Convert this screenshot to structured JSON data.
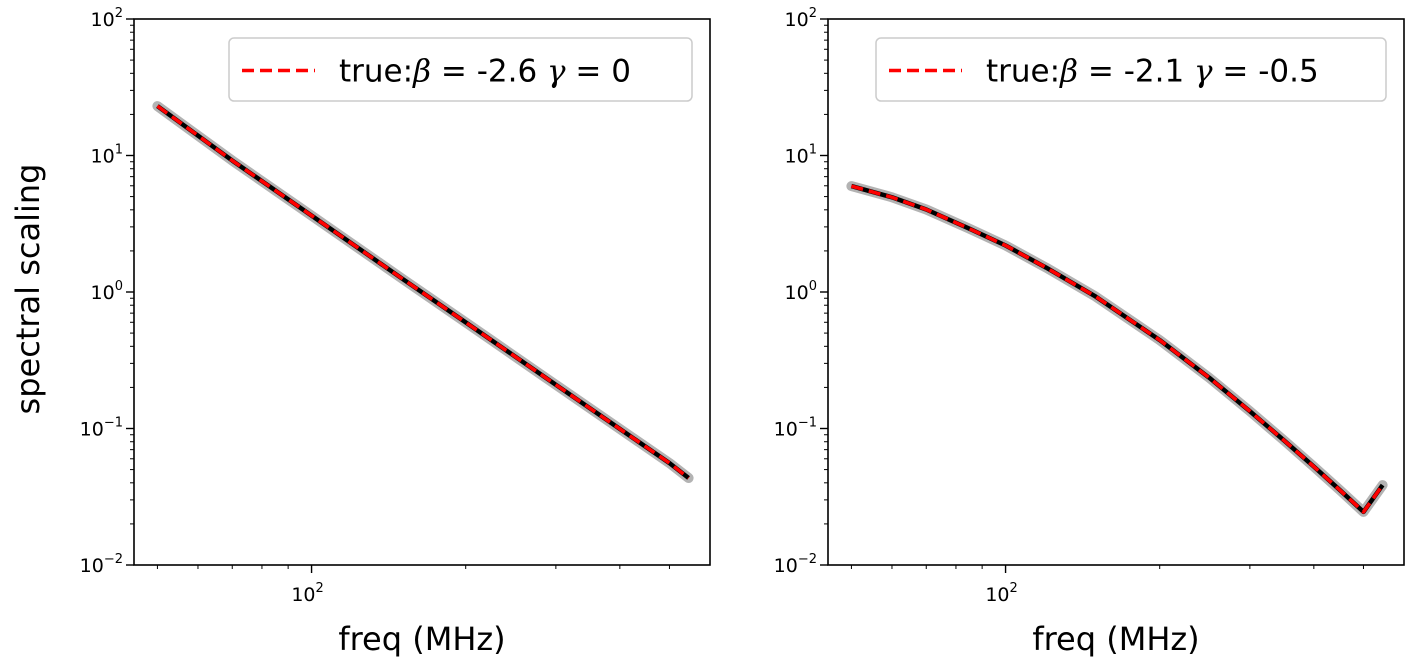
{
  "chart_data": [
    {
      "type": "line",
      "xscale": "log",
      "yscale": "log",
      "xlabel": "freq (MHz)",
      "ylabel": "spectral scaling",
      "xlim": [
        45,
        600
      ],
      "ylim": [
        0.01,
        100
      ],
      "x_major_ticks": [
        {
          "value": 100,
          "base": "10",
          "exp": "2"
        }
      ],
      "y_major_ticks": [
        {
          "value": 0.01,
          "base": "10",
          "exp": "−2"
        },
        {
          "value": 0.1,
          "base": "10",
          "exp": "−1"
        },
        {
          "value": 1,
          "base": "10",
          "exp": "0"
        },
        {
          "value": 10,
          "base": "10",
          "exp": "1"
        },
        {
          "value": 100,
          "base": "10",
          "exp": "2"
        }
      ],
      "grid": false,
      "legend_position": "upper-right",
      "legend": {
        "label": "true:",
        "beta_symbol": "β",
        "beta": "-2.6",
        "gamma_symbol": "γ",
        "gamma": "0",
        "equals": "="
      },
      "series": [
        {
          "style": "solid",
          "color": "#000000",
          "band_color": "#9a9a9a",
          "x": [
            50,
            70,
            100,
            150,
            200,
            300,
            400,
            500,
            545
          ],
          "y": [
            23,
            9.18,
            3.63,
            1.26,
            0.599,
            0.209,
            0.0993,
            0.0558,
            0.0434
          ]
        },
        {
          "style": "dashed",
          "color": "#ff0000",
          "x": [
            50,
            70,
            100,
            150,
            200,
            300,
            400,
            500,
            545
          ],
          "y": [
            23,
            9.18,
            3.63,
            1.26,
            0.599,
            0.209,
            0.0993,
            0.0558,
            0.0434
          ]
        }
      ]
    },
    {
      "type": "line",
      "xscale": "log",
      "yscale": "log",
      "xlabel": "freq (MHz)",
      "ylabel": "",
      "xlim": [
        45,
        600
      ],
      "ylim": [
        0.01,
        100
      ],
      "x_major_ticks": [
        {
          "value": 100,
          "base": "10",
          "exp": "2"
        }
      ],
      "y_major_ticks": [
        {
          "value": 0.01,
          "base": "10",
          "exp": "−2"
        },
        {
          "value": 0.1,
          "base": "10",
          "exp": "−1"
        },
        {
          "value": 1,
          "base": "10",
          "exp": "0"
        },
        {
          "value": 10,
          "base": "10",
          "exp": "1"
        },
        {
          "value": 100,
          "base": "10",
          "exp": "2"
        }
      ],
      "grid": false,
      "legend_position": "upper-right",
      "legend": {
        "label": "true:",
        "beta_symbol": "β",
        "beta": "-2.1",
        "gamma_symbol": "γ",
        "gamma": "-0.5",
        "equals": "="
      },
      "series": [
        {
          "style": "solid",
          "color": "#000000",
          "band_color": "#9a9a9a",
          "x": [
            50,
            60,
            70,
            85,
            100,
            120,
            150,
            200,
            250,
            300,
            350,
            400,
            450,
            500,
            545
          ],
          "y": [
            5.97,
            4.94,
            4.02,
            2.91,
            2.19,
            1.51,
            0.925,
            0.444,
            0.235,
            0.134,
            0.0817,
            0.0526,
            0.0353,
            0.0245,
            0.0385
          ]
        },
        {
          "style": "dashed",
          "color": "#ff0000",
          "x": [
            50,
            60,
            70,
            85,
            100,
            120,
            150,
            200,
            250,
            300,
            350,
            400,
            450,
            500,
            545
          ],
          "y": [
            5.97,
            4.94,
            4.02,
            2.91,
            2.19,
            1.51,
            0.925,
            0.444,
            0.235,
            0.134,
            0.0817,
            0.0526,
            0.0353,
            0.0245,
            0.0385
          ]
        }
      ]
    }
  ]
}
